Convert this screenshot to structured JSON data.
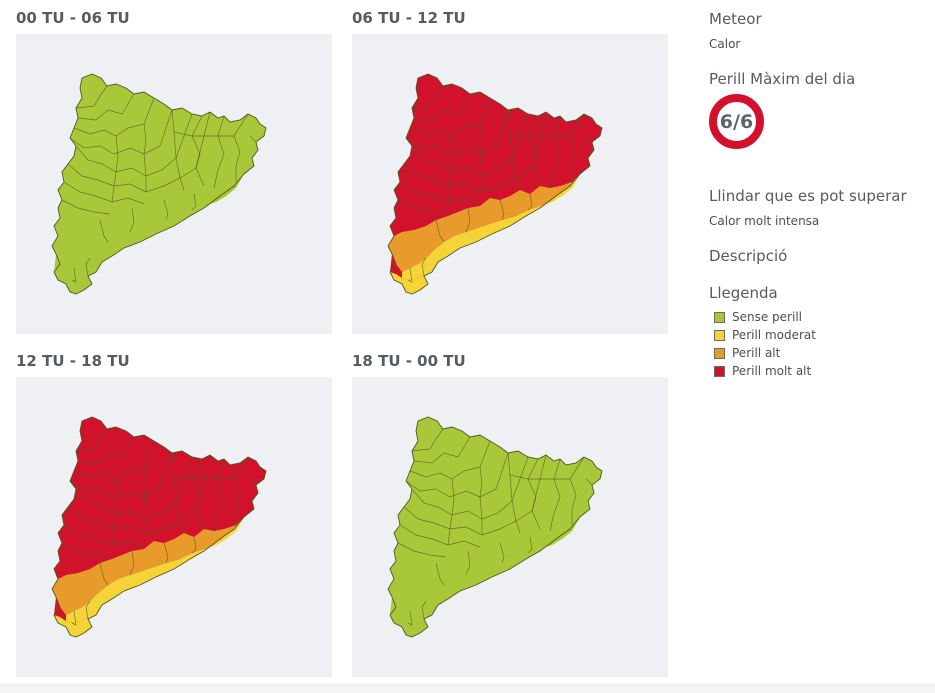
{
  "panels": [
    {
      "title": "00 TU - 06 TU",
      "zones": {
        "north": "green",
        "mid": "green",
        "coast": "green",
        "delta": "green"
      }
    },
    {
      "title": "06 TU - 12 TU",
      "zones": {
        "north": "red",
        "mid": "orange",
        "coast": "yellow",
        "delta": "yellow"
      }
    },
    {
      "title": "12 TU - 18 TU",
      "zones": {
        "north": "red",
        "mid": "orange",
        "coast": "yellow",
        "delta": "yellow"
      }
    },
    {
      "title": "18 TU - 00 TU",
      "zones": {
        "north": "green",
        "mid": "green",
        "coast": "green",
        "delta": "green"
      }
    }
  ],
  "sidebar": {
    "meteor_heading": "Meteor",
    "meteor_value": "Calor",
    "max_danger_heading": "Perill Màxim del dia",
    "max_danger_value": "6/6",
    "threshold_heading": "Llindar que es pot superar",
    "threshold_value": "Calor molt intensa",
    "description_heading": "Descripció",
    "legend_heading": "Llegenda",
    "legend": [
      {
        "label": "Sense perill",
        "color": "#a8c83a"
      },
      {
        "label": "Perill moderat",
        "color": "#f5d43a"
      },
      {
        "label": "Perill alt",
        "color": "#e89a2b"
      },
      {
        "label": "Perill molt alt",
        "color": "#d2112d"
      }
    ]
  },
  "colors": {
    "green": "#a8c83a",
    "yellow": "#f5d43a",
    "orange": "#e89a2b",
    "red": "#d2112d",
    "ring": "#d2112d",
    "border": "#4d5a1e"
  }
}
